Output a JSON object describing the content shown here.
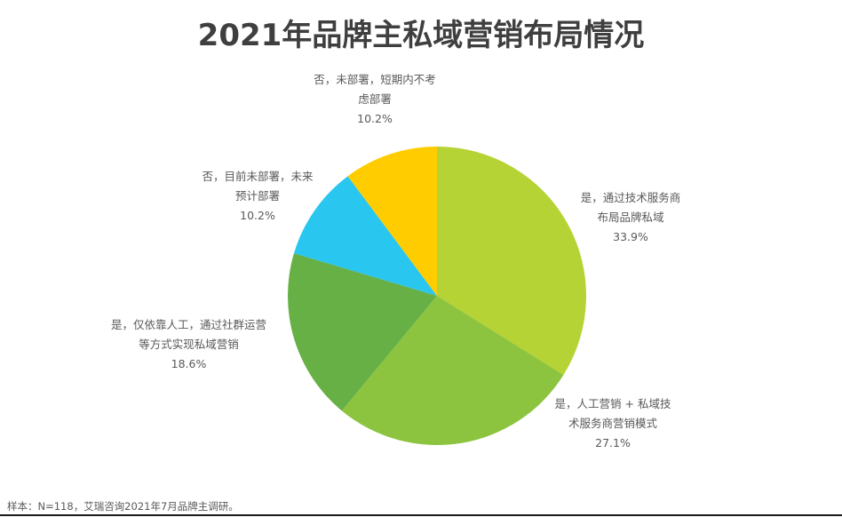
{
  "title": "2021年品牌主私域营销布局情况",
  "source": "样本：N=118，艾瑞咨询2021年7月品牌主调研。",
  "chart_data": {
    "type": "pie",
    "title": "2021年品牌主私域营销布局情况",
    "start_angle": "12 o'clock, clockwise",
    "slices": [
      {
        "label": "是，通过技术服务商布局品牌私域",
        "label_lines": [
          "是，通过技术服务商",
          "布局品牌私域"
        ],
        "value": 33.9,
        "value_label": "33.9%",
        "color": "#b5d334"
      },
      {
        "label": "是，人工营销 + 私域技术服务商营销模式",
        "label_lines": [
          "是，人工营销 + 私域技",
          "术服务商营销模式"
        ],
        "value": 27.1,
        "value_label": "27.1%",
        "color": "#8cc43f"
      },
      {
        "label": "是，仅依靠人工，通过社群运营等方式实现私域营销",
        "label_lines": [
          "是，仅依靠人工，通过社群运营",
          "等方式实现私域营销"
        ],
        "value": 18.6,
        "value_label": "18.6%",
        "color": "#66b045"
      },
      {
        "label": "否，目前未部署，未来预计部署",
        "label_lines": [
          "否，目前未部署，未来",
          "预计部署"
        ],
        "value": 10.2,
        "value_label": "10.2%",
        "color": "#29c6ef"
      },
      {
        "label": "否，未部署，短期内不考虑部署",
        "label_lines": [
          "否，未部署，短期内不考",
          "虑部署"
        ],
        "value": 10.2,
        "value_label": "10.2%",
        "color": "#ffcc00"
      }
    ],
    "unit": "%",
    "sample": "N=118"
  }
}
